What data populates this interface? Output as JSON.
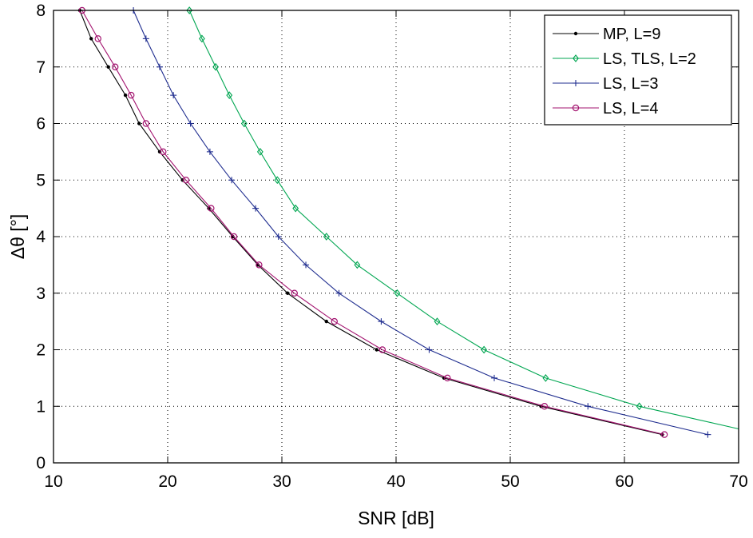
{
  "chart_data": {
    "type": "line",
    "title": "",
    "xlabel": "SNR [dB]",
    "ylabel": "Δθ [°]",
    "xlim": [
      10,
      70
    ],
    "ylim": [
      0,
      8
    ],
    "xticks": [
      10,
      20,
      30,
      40,
      50,
      60,
      70
    ],
    "yticks": [
      0,
      1,
      2,
      3,
      4,
      5,
      6,
      7,
      8
    ],
    "grid": "dotted",
    "legend_position": "top-right",
    "series": [
      {
        "name": "MP, L=9",
        "color": "#000000",
        "marker": "dot",
        "x": [
          12.3,
          13.3,
          14.8,
          16.3,
          17.5,
          19.3,
          21.3,
          23.6,
          25.7,
          27.9,
          30.5,
          33.9,
          38.3,
          44.2,
          52.7,
          63.3
        ],
        "y": [
          8.0,
          7.5,
          7.0,
          6.5,
          6.0,
          5.5,
          5.0,
          4.5,
          4.0,
          3.5,
          3.0,
          2.5,
          2.0,
          1.5,
          1.0,
          0.5
        ]
      },
      {
        "name": "LS, TLS, L=2",
        "color": "#00a651",
        "marker": "diamond",
        "x": [
          21.9,
          23.0,
          24.2,
          25.4,
          26.7,
          28.1,
          29.6,
          31.2,
          33.9,
          36.6,
          40.1,
          43.6,
          47.7,
          53.1,
          61.3,
          70.0
        ],
        "y": [
          8.0,
          7.5,
          7.0,
          6.5,
          6.0,
          5.5,
          5.0,
          4.5,
          4.0,
          3.5,
          3.0,
          2.5,
          2.0,
          1.5,
          1.0,
          0.6
        ]
      },
      {
        "name": "LS, L=3",
        "color": "#1f2d8f",
        "marker": "plus",
        "x": [
          17.0,
          18.1,
          19.3,
          20.5,
          22.0,
          23.7,
          25.6,
          27.7,
          29.7,
          32.1,
          35.0,
          38.7,
          42.9,
          48.6,
          56.8,
          67.3
        ],
        "y": [
          8.0,
          7.5,
          7.0,
          6.5,
          6.0,
          5.5,
          5.0,
          4.5,
          4.0,
          3.5,
          3.0,
          2.5,
          2.0,
          1.5,
          1.0,
          0.5
        ]
      },
      {
        "name": "LS, L=4",
        "color": "#a3136f",
        "marker": "circle",
        "x": [
          12.5,
          13.9,
          15.4,
          16.8,
          18.1,
          19.6,
          21.6,
          23.8,
          25.8,
          28.0,
          31.1,
          34.6,
          38.8,
          44.5,
          53.0,
          63.5
        ],
        "y": [
          8.0,
          7.5,
          7.0,
          6.5,
          6.0,
          5.5,
          5.0,
          4.5,
          4.0,
          3.5,
          3.0,
          2.5,
          2.0,
          1.5,
          1.0,
          0.5
        ]
      }
    ]
  }
}
